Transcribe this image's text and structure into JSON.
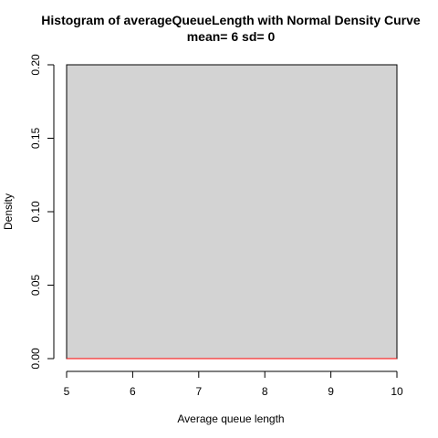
{
  "chart_data": {
    "type": "bar",
    "title": "Histogram of averageQueueLength with Normal Density Curve",
    "subtitle": "mean= 6 sd= 0",
    "xlabel": "Average queue length",
    "ylabel": "Density",
    "xlim": [
      5,
      10
    ],
    "ylim": [
      0,
      0.2
    ],
    "x_ticks": [
      "5",
      "6",
      "7",
      "8",
      "9",
      "10"
    ],
    "y_ticks": [
      "0.00",
      "0.05",
      "0.10",
      "0.15",
      "0.20"
    ],
    "bars": [
      {
        "x0": 5,
        "x1": 10,
        "density": 0.2
      }
    ],
    "density_curve": {
      "mean": 6,
      "sd": 0,
      "x": [
        5,
        6,
        7,
        8,
        9,
        10
      ],
      "y": [
        0,
        0,
        0,
        0,
        0,
        0
      ]
    },
    "colors": {
      "bar_fill": "#d3d3d3",
      "bar_stroke": "#000000",
      "curve": "#ff0000"
    }
  }
}
